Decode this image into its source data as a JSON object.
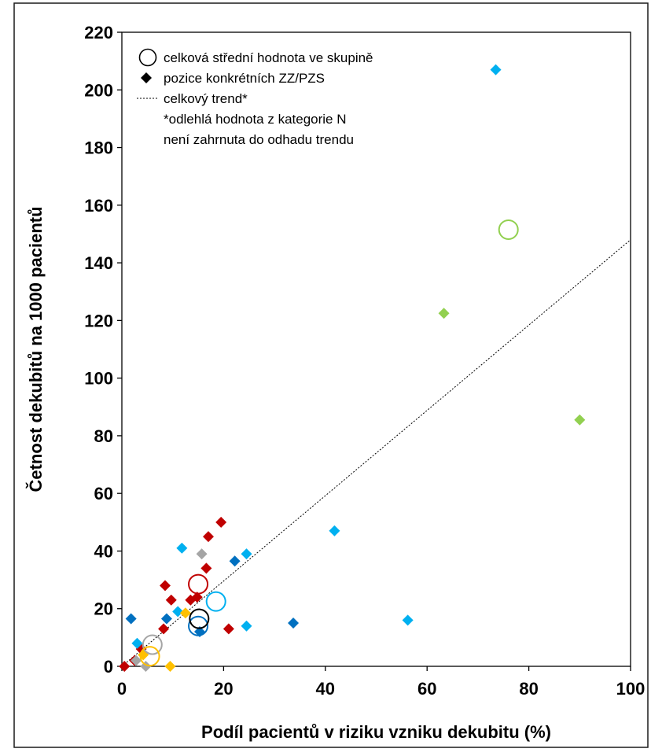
{
  "chart_data": {
    "type": "scatter",
    "xlabel": "Podíl pacientů v riziku vzniku dekubitu (%)",
    "ylabel": "Četnost dekubitů na 1000 pacientů",
    "xlim": [
      0,
      100
    ],
    "ylim": [
      0,
      220
    ],
    "xticks": [
      "0",
      "20",
      "40",
      "60",
      "80",
      "100"
    ],
    "yticks": [
      "0",
      "20",
      "40",
      "60",
      "80",
      "100",
      "120",
      "140",
      "160",
      "180",
      "200",
      "220"
    ],
    "grid": false,
    "legend_position": "top-left",
    "legend": {
      "mean": "celková střední hodnota ve skupině",
      "points": "pozice konkrétních ZZ/PZS",
      "trend": "celkový trend*",
      "note_line1": "*odlehlá hodnota z kategorie N",
      "note_line2": "není zahrnuta do odhadu trendu"
    },
    "trend": {
      "x": [
        0,
        100
      ],
      "y": [
        0,
        148
      ]
    },
    "series": [
      {
        "color": "#C00000",
        "points": [
          [
            0.5,
            0
          ],
          [
            2.5,
            2
          ],
          [
            3.8,
            6
          ],
          [
            8.2,
            13
          ],
          [
            8.5,
            28
          ],
          [
            9.7,
            23
          ],
          [
            13.5,
            23
          ],
          [
            14.8,
            24
          ],
          [
            16.6,
            34
          ],
          [
            17,
            45
          ],
          [
            19.5,
            50
          ],
          [
            21,
            13
          ]
        ],
        "mean": [
          15,
          28.5
        ]
      },
      {
        "color": "#00B0F0",
        "points": [
          [
            3,
            8
          ],
          [
            11,
            19
          ],
          [
            11.8,
            41
          ],
          [
            24.5,
            39
          ],
          [
            24.5,
            14
          ],
          [
            41.8,
            47
          ],
          [
            56.2,
            16
          ],
          [
            73.5,
            207
          ]
        ],
        "mean": [
          18.5,
          22.5
        ]
      },
      {
        "color": "#0070C0",
        "points": [
          [
            1.8,
            16.5
          ],
          [
            8.8,
            16.5
          ],
          [
            15.3,
            12
          ],
          [
            22.2,
            36.5
          ],
          [
            33.7,
            15
          ]
        ],
        "mean": [
          15,
          14
        ]
      },
      {
        "color": "#A5A5A5",
        "points": [
          [
            2.8,
            2
          ],
          [
            4.7,
            0
          ],
          [
            15.7,
            39
          ]
        ],
        "mean": [
          6,
          7.5
        ]
      },
      {
        "color": "#FFC000",
        "points": [
          [
            4.2,
            4
          ],
          [
            9.5,
            0
          ],
          [
            12.5,
            18.5
          ]
        ],
        "mean": [
          5.5,
          3.5
        ]
      },
      {
        "color": "#000000",
        "points": [],
        "mean": [
          15.2,
          16.5
        ]
      },
      {
        "color": "#92D050",
        "points": [
          [
            63.3,
            122.5
          ],
          [
            90,
            85.5
          ]
        ],
        "mean": [
          76,
          151.5
        ]
      }
    ]
  }
}
